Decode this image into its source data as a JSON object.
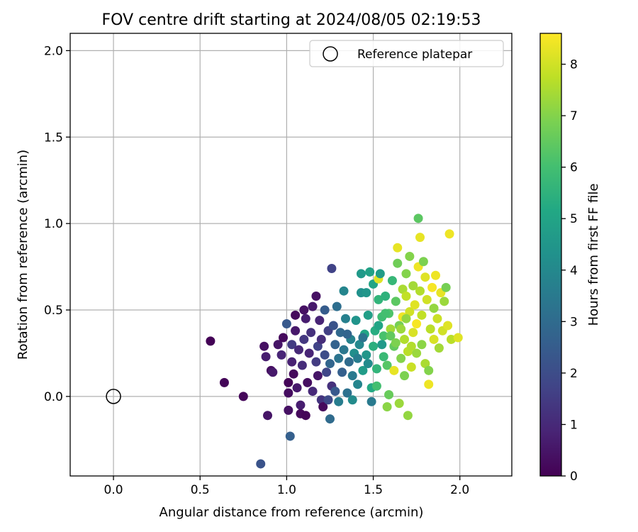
{
  "chart_data": {
    "type": "scatter",
    "title": "FOV centre drift starting at 2024/08/05 02:19:53",
    "xlabel": "Angular distance from reference (arcmin)",
    "ylabel": "Rotation from reference (arcmin)",
    "xlim": [
      -0.25,
      2.3
    ],
    "ylim": [
      -0.46,
      2.1
    ],
    "xticks": [
      0.0,
      0.5,
      1.0,
      1.5,
      2.0
    ],
    "xtick_labels": [
      "0.0",
      "0.5",
      "1.0",
      "1.5",
      "2.0"
    ],
    "yticks": [
      0.0,
      0.5,
      1.0,
      1.5,
      2.0
    ],
    "ytick_labels": [
      "0.0",
      "0.5",
      "1.0",
      "1.5",
      "2.0"
    ],
    "grid": true,
    "legend": {
      "location": "upper right",
      "entries": [
        "Reference platepar"
      ]
    },
    "reference_point": {
      "name": "Reference platepar",
      "x": 0.0,
      "y": 0.0,
      "marker": "open-circle"
    },
    "colorbar": {
      "label": "Hours from first FF file",
      "colormap": "viridis",
      "range": [
        0,
        8.6
      ],
      "ticks": [
        0,
        1,
        2,
        3,
        4,
        5,
        6,
        7,
        8
      ],
      "tick_labels": [
        "0",
        "1",
        "2",
        "3",
        "4",
        "5",
        "6",
        "7",
        "8"
      ]
    },
    "points": [
      [
        0.56,
        0.32,
        0.05
      ],
      [
        0.64,
        0.08,
        0.1
      ],
      [
        0.75,
        0.0,
        0.15
      ],
      [
        0.85,
        -0.39,
        2.2
      ],
      [
        0.89,
        -0.11,
        0.5
      ],
      [
        0.87,
        0.29,
        0.4
      ],
      [
        0.88,
        0.23,
        0.7
      ],
      [
        0.91,
        0.15,
        0.3
      ],
      [
        0.92,
        0.14,
        0.6
      ],
      [
        0.95,
        0.3,
        0.5
      ],
      [
        0.97,
        0.24,
        0.9
      ],
      [
        0.98,
        0.34,
        0.2
      ],
      [
        1.0,
        0.42,
        2.4
      ],
      [
        1.01,
        0.08,
        0.1
      ],
      [
        1.01,
        0.02,
        0.3
      ],
      [
        1.01,
        -0.08,
        0.4
      ],
      [
        1.02,
        -0.23,
        2.6
      ],
      [
        1.03,
        0.3,
        1.5
      ],
      [
        1.03,
        0.2,
        0.8
      ],
      [
        1.04,
        0.13,
        0.2
      ],
      [
        1.05,
        0.38,
        0.6
      ],
      [
        1.05,
        0.47,
        0.2
      ],
      [
        1.06,
        0.05,
        0.6
      ],
      [
        1.07,
        0.27,
        1.0
      ],
      [
        1.08,
        -0.05,
        0.7
      ],
      [
        1.08,
        -0.1,
        0.2
      ],
      [
        1.09,
        0.18,
        1.1
      ],
      [
        1.1,
        0.33,
        1.4
      ],
      [
        1.1,
        0.5,
        0.4
      ],
      [
        1.11,
        0.45,
        0.7
      ],
      [
        1.11,
        -0.11,
        0.1
      ],
      [
        1.12,
        0.08,
        0.3
      ],
      [
        1.13,
        0.25,
        0.9
      ],
      [
        1.14,
        0.37,
        1.2
      ],
      [
        1.15,
        0.52,
        0.6
      ],
      [
        1.15,
        0.03,
        1.0
      ],
      [
        1.17,
        0.58,
        0.4
      ],
      [
        1.17,
        0.2,
        1.5
      ],
      [
        1.18,
        0.29,
        1.7
      ],
      [
        1.18,
        0.12,
        0.5
      ],
      [
        1.19,
        0.44,
        0.9
      ],
      [
        1.2,
        -0.02,
        1.3
      ],
      [
        1.2,
        0.33,
        1.1
      ],
      [
        1.21,
        -0.06,
        0.2
      ],
      [
        1.22,
        0.5,
        2.5
      ],
      [
        1.22,
        0.24,
        2.0
      ],
      [
        1.23,
        0.14,
        1.8
      ],
      [
        1.24,
        0.38,
        1.6
      ],
      [
        1.24,
        -0.02,
        1.9
      ],
      [
        1.25,
        -0.13,
        3.0
      ],
      [
        1.25,
        0.19,
        2.8
      ],
      [
        1.26,
        0.74,
        1.7
      ],
      [
        1.26,
        0.06,
        1.2
      ],
      [
        1.27,
        0.41,
        2.2
      ],
      [
        1.28,
        0.3,
        2.7
      ],
      [
        1.28,
        0.03,
        2.4
      ],
      [
        1.29,
        0.52,
        3.1
      ],
      [
        1.3,
        0.22,
        3.3
      ],
      [
        1.3,
        -0.03,
        3.6
      ],
      [
        1.31,
        0.37,
        2.9
      ],
      [
        1.32,
        0.14,
        2.6
      ],
      [
        1.33,
        0.61,
        3.9
      ],
      [
        1.33,
        0.27,
        3.4
      ],
      [
        1.34,
        0.45,
        3.7
      ],
      [
        1.35,
        0.02,
        3.2
      ],
      [
        1.36,
        0.2,
        3.0
      ],
      [
        1.37,
        0.33,
        3.8
      ],
      [
        1.38,
        -0.02,
        4.1
      ],
      [
        1.38,
        0.12,
        3.5
      ],
      [
        1.39,
        0.25,
        4.2
      ],
      [
        1.4,
        0.44,
        4.4
      ],
      [
        1.41,
        0.07,
        3.9
      ],
      [
        1.42,
        0.3,
        4.0
      ],
      [
        1.43,
        0.6,
        4.3
      ],
      [
        1.43,
        0.71,
        4.6
      ],
      [
        1.44,
        0.15,
        4.7
      ],
      [
        1.45,
        0.36,
        5.1
      ],
      [
        1.46,
        0.24,
        4.5
      ],
      [
        1.47,
        0.47,
        4.8
      ],
      [
        1.48,
        0.72,
        4.9
      ],
      [
        1.49,
        0.05,
        5.2
      ],
      [
        1.49,
        -0.03,
        3.5
      ],
      [
        1.5,
        0.29,
        5.4
      ],
      [
        1.5,
        0.65,
        5.0
      ],
      [
        1.51,
        0.38,
        5.3
      ],
      [
        1.52,
        0.16,
        5.6
      ],
      [
        1.52,
        0.06,
        6.0
      ],
      [
        1.53,
        0.68,
        8.2
      ],
      [
        1.53,
        0.56,
        5.6
      ],
      [
        1.54,
        0.71,
        4.7
      ],
      [
        1.55,
        0.46,
        5.9
      ],
      [
        1.56,
        0.23,
        5.8
      ],
      [
        1.56,
        0.35,
        6.1
      ],
      [
        1.57,
        0.58,
        5.5
      ],
      [
        1.58,
        -0.06,
        7.1
      ],
      [
        1.58,
        0.18,
        6.3
      ],
      [
        1.59,
        0.01,
        6.6
      ],
      [
        1.59,
        0.48,
        6.2
      ],
      [
        1.6,
        0.39,
        7.4
      ],
      [
        1.61,
        0.67,
        5.7
      ],
      [
        1.62,
        0.15,
        8.3
      ],
      [
        1.62,
        0.29,
        6.5
      ],
      [
        1.63,
        0.55,
        6.4
      ],
      [
        1.64,
        0.77,
        6.7
      ],
      [
        1.64,
        0.86,
        8.3
      ],
      [
        1.65,
        -0.04,
        7.3
      ],
      [
        1.65,
        0.41,
        6.8
      ],
      [
        1.66,
        0.22,
        7.0
      ],
      [
        1.67,
        0.62,
        7.5
      ],
      [
        1.67,
        0.46,
        8.4
      ],
      [
        1.68,
        0.12,
        6.9
      ],
      [
        1.68,
        0.33,
        7.6
      ],
      [
        1.69,
        0.58,
        7.8
      ],
      [
        1.69,
        0.71,
        7.0
      ],
      [
        1.7,
        -0.11,
        7.2
      ],
      [
        1.7,
        0.26,
        7.7
      ],
      [
        1.71,
        0.81,
        7.0
      ],
      [
        1.71,
        0.49,
        8.0
      ],
      [
        1.72,
        0.17,
        7.9
      ],
      [
        1.73,
        0.37,
        8.1
      ],
      [
        1.73,
        0.64,
        7.4
      ],
      [
        1.74,
        0.53,
        8.2
      ],
      [
        1.75,
        0.25,
        7.3
      ],
      [
        1.75,
        0.42,
        8.5
      ],
      [
        1.76,
        0.75,
        8.4
      ],
      [
        1.76,
        1.03,
        6.4
      ],
      [
        1.77,
        0.61,
        7.6
      ],
      [
        1.77,
        0.92,
        8.3
      ],
      [
        1.78,
        0.3,
        7.1
      ],
      [
        1.78,
        0.47,
        7.8
      ],
      [
        1.79,
        0.78,
        6.9
      ],
      [
        1.8,
        0.69,
        8.2
      ],
      [
        1.8,
        0.19,
        7.5
      ],
      [
        1.81,
        0.56,
        8.0
      ],
      [
        1.82,
        0.07,
        8.4
      ],
      [
        1.82,
        0.15,
        7.0
      ],
      [
        1.83,
        0.39,
        7.7
      ],
      [
        1.84,
        0.63,
        8.5
      ],
      [
        1.85,
        0.33,
        8.1
      ],
      [
        1.85,
        0.51,
        7.2
      ],
      [
        1.86,
        0.7,
        8.4
      ],
      [
        1.87,
        0.45,
        7.9
      ],
      [
        1.88,
        0.28,
        7.4
      ],
      [
        1.89,
        0.6,
        8.3
      ],
      [
        1.9,
        0.38,
        8.0
      ],
      [
        1.91,
        0.55,
        7.3
      ],
      [
        1.92,
        0.63,
        6.8
      ],
      [
        1.93,
        0.41,
        8.2
      ],
      [
        1.94,
        0.94,
        8.4
      ],
      [
        1.95,
        0.33,
        7.7
      ],
      [
        1.99,
        0.34,
        8.2
      ],
      [
        1.44,
        0.34,
        3.3
      ],
      [
        1.47,
        0.19,
        4.1
      ],
      [
        1.41,
        0.22,
        3.6
      ],
      [
        1.35,
        0.36,
        2.8
      ],
      [
        1.46,
        0.6,
        4.5
      ],
      [
        1.53,
        0.41,
        5.0
      ],
      [
        1.55,
        0.3,
        4.6
      ],
      [
        1.57,
        0.48,
        6.0
      ],
      [
        1.6,
        0.35,
        6.5
      ],
      [
        1.63,
        0.31,
        6.9
      ],
      [
        1.66,
        0.39,
        7.3
      ],
      [
        1.69,
        0.45,
        7.2
      ],
      [
        1.72,
        0.29,
        7.6
      ]
    ]
  }
}
